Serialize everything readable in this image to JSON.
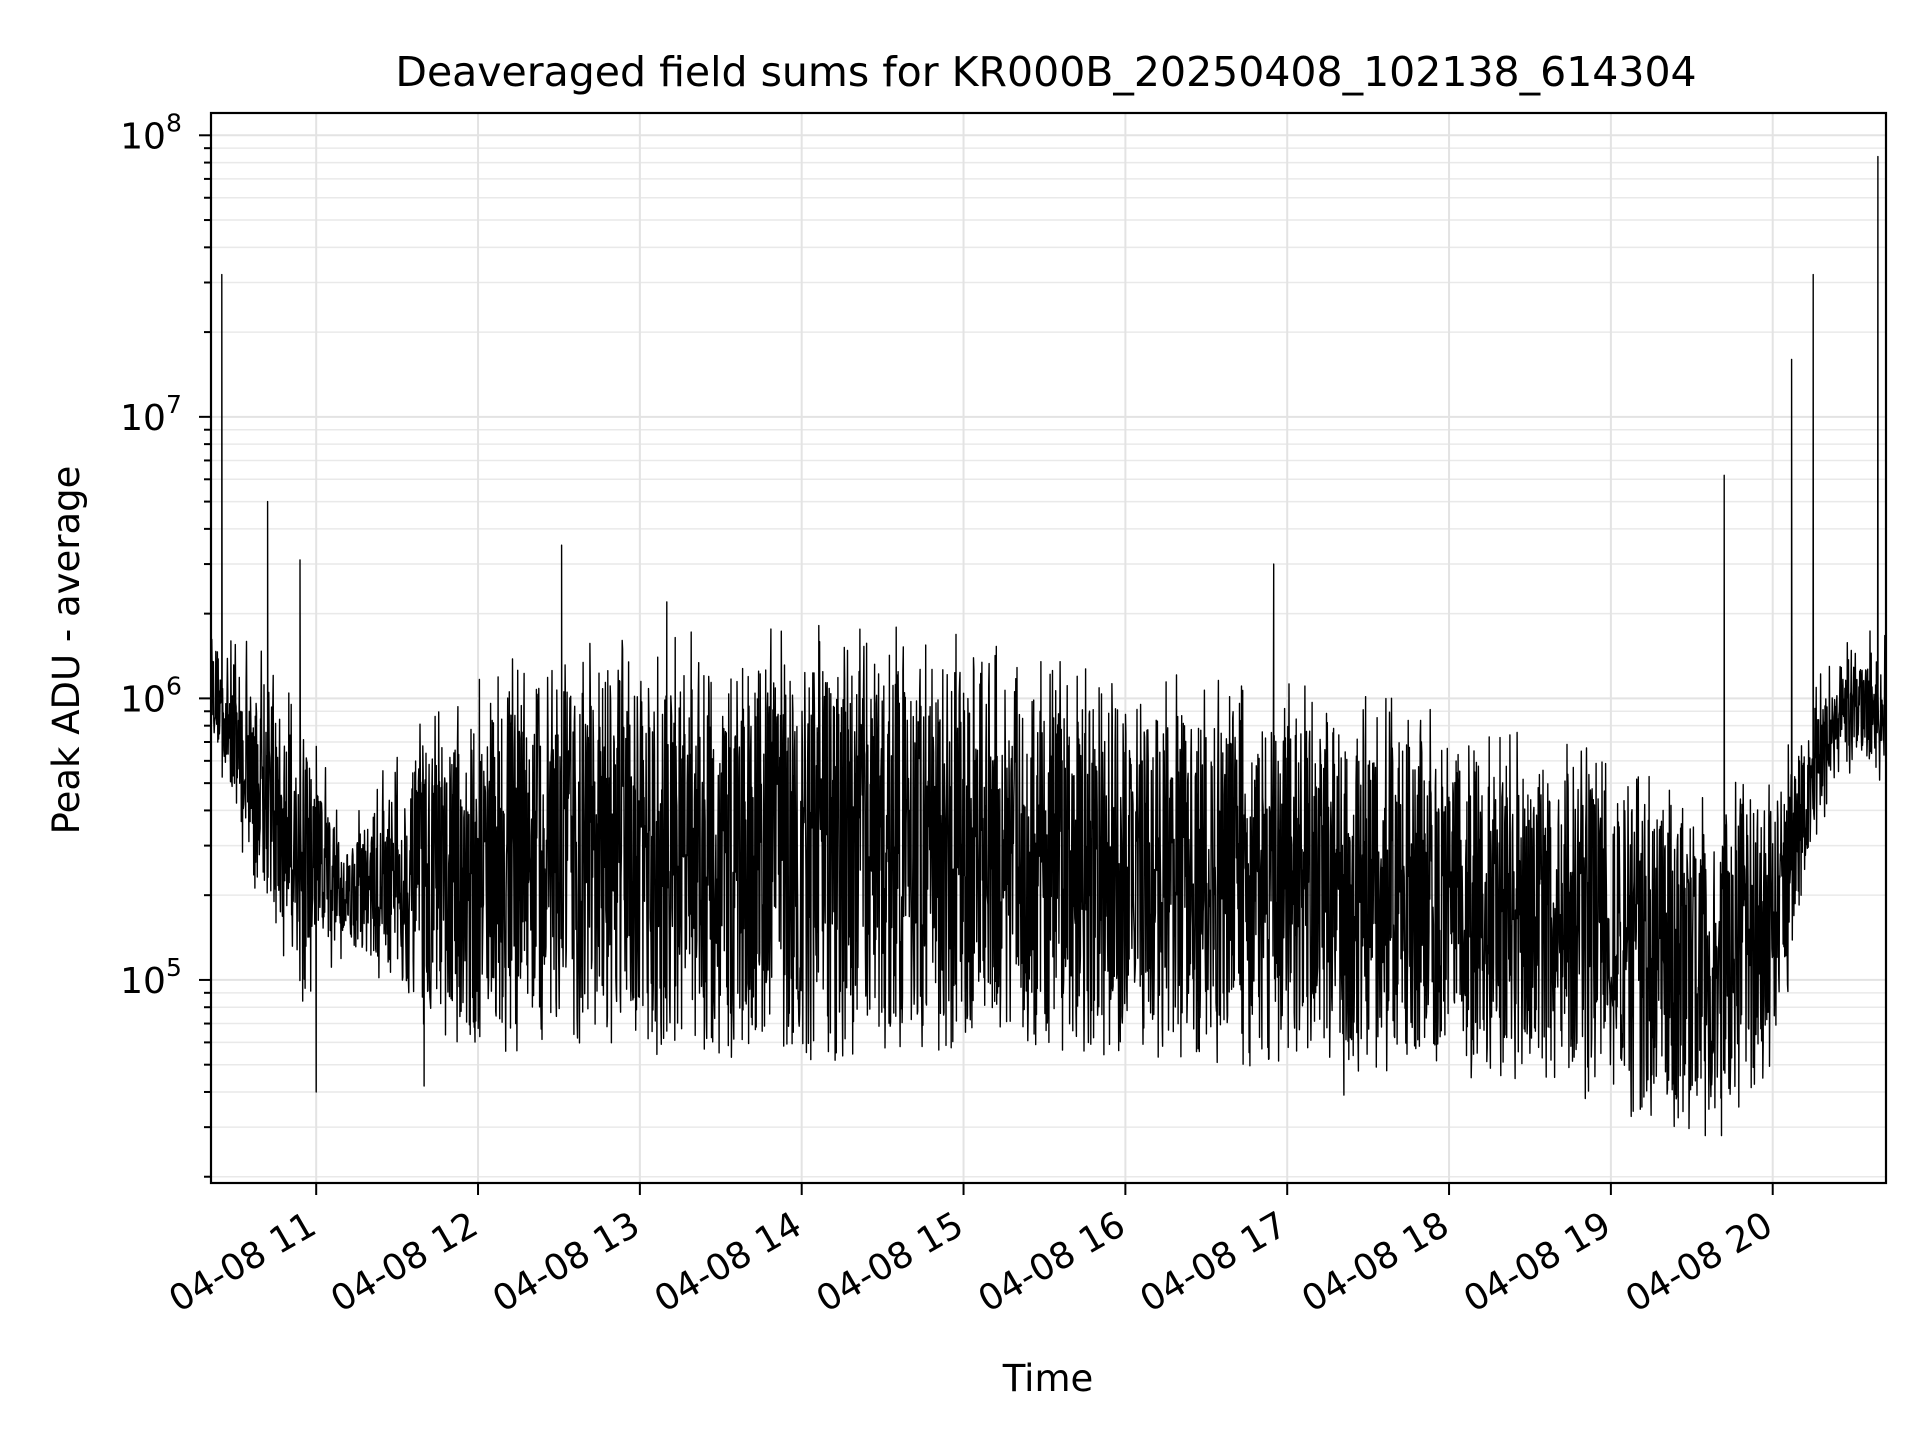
{
  "chart_data": {
    "type": "line",
    "title": "Deaveraged field sums for KR000B_20250408_102138_614304",
    "xlabel": "Time",
    "ylabel": "Peak ADU - average",
    "y_scale": "log",
    "ylim": [
      19000,
      120000000
    ],
    "xlim": [
      "2025-04-08 10:21",
      "2025-04-08 20:42"
    ],
    "grid": true,
    "line_color": "#000000",
    "x_ticks": [
      "2025-04-08 11:00",
      "2025-04-08 12:00",
      "2025-04-08 13:00",
      "2025-04-08 14:00",
      "2025-04-08 15:00",
      "2025-04-08 16:00",
      "2025-04-08 17:00",
      "2025-04-08 18:00",
      "2025-04-08 19:00",
      "2025-04-08 20:00"
    ],
    "x_tick_labels": [
      "04-08 11",
      "04-08 12",
      "04-08 13",
      "04-08 14",
      "04-08 15",
      "04-08 16",
      "04-08 17",
      "04-08 18",
      "04-08 19",
      "04-08 20"
    ],
    "y_ticks": [
      100000,
      1000000,
      10000000,
      100000000
    ],
    "y_tick_base": "10",
    "y_tick_exponents": [
      "5",
      "6",
      "7",
      "8"
    ],
    "envelope": {
      "x": [
        "2025-04-08 10:21",
        "2025-04-08 10:35",
        "2025-04-08 10:55",
        "2025-04-08 11:10",
        "2025-04-08 11:40",
        "2025-04-08 12:10",
        "2025-04-08 12:45",
        "2025-04-08 13:30",
        "2025-04-08 14:15",
        "2025-04-08 14:52",
        "2025-04-08 15:30",
        "2025-04-08 16:15",
        "2025-04-08 17:00",
        "2025-04-08 17:45",
        "2025-04-08 18:30",
        "2025-04-08 19:10",
        "2025-04-08 19:35",
        "2025-04-08 20:00",
        "2025-04-08 20:15",
        "2025-04-08 20:25",
        "2025-04-08 20:42"
      ],
      "upper": [
        1600000,
        1200000,
        700000,
        300000,
        600000,
        1000000,
        1150000,
        1250000,
        1350000,
        1300000,
        1000000,
        900000,
        800000,
        700000,
        550000,
        420000,
        350000,
        420000,
        800000,
        1300000,
        1300000
      ],
      "lower": [
        800000,
        300000,
        100000,
        150000,
        80000,
        70000,
        70000,
        65000,
        65000,
        70000,
        70000,
        65000,
        60000,
        58000,
        55000,
        40000,
        35000,
        55000,
        350000,
        700000,
        600000
      ]
    },
    "spikes": [
      {
        "x": "2025-04-08 10:25",
        "y": 32000000
      },
      {
        "x": "2025-04-08 10:42",
        "y": 5000000
      },
      {
        "x": "2025-04-08 10:54",
        "y": 3100000
      },
      {
        "x": "2025-04-08 12:31",
        "y": 3500000
      },
      {
        "x": "2025-04-08 13:10",
        "y": 2200000
      },
      {
        "x": "2025-04-08 16:55",
        "y": 3000000
      },
      {
        "x": "2025-04-08 19:42",
        "y": 6200000
      },
      {
        "x": "2025-04-08 20:07",
        "y": 16000000
      },
      {
        "x": "2025-04-08 20:15",
        "y": 32000000
      },
      {
        "x": "2025-04-08 20:39",
        "y": 84000000
      }
    ],
    "dips": [
      {
        "x": "2025-04-08 11:00",
        "y": 40000
      },
      {
        "x": "2025-04-08 11:40",
        "y": 42000
      },
      {
        "x": "2025-04-08 17:21",
        "y": 39000
      },
      {
        "x": "2025-04-08 19:35",
        "y": 28000
      },
      {
        "x": "2025-04-08 19:41",
        "y": 28000
      }
    ]
  }
}
